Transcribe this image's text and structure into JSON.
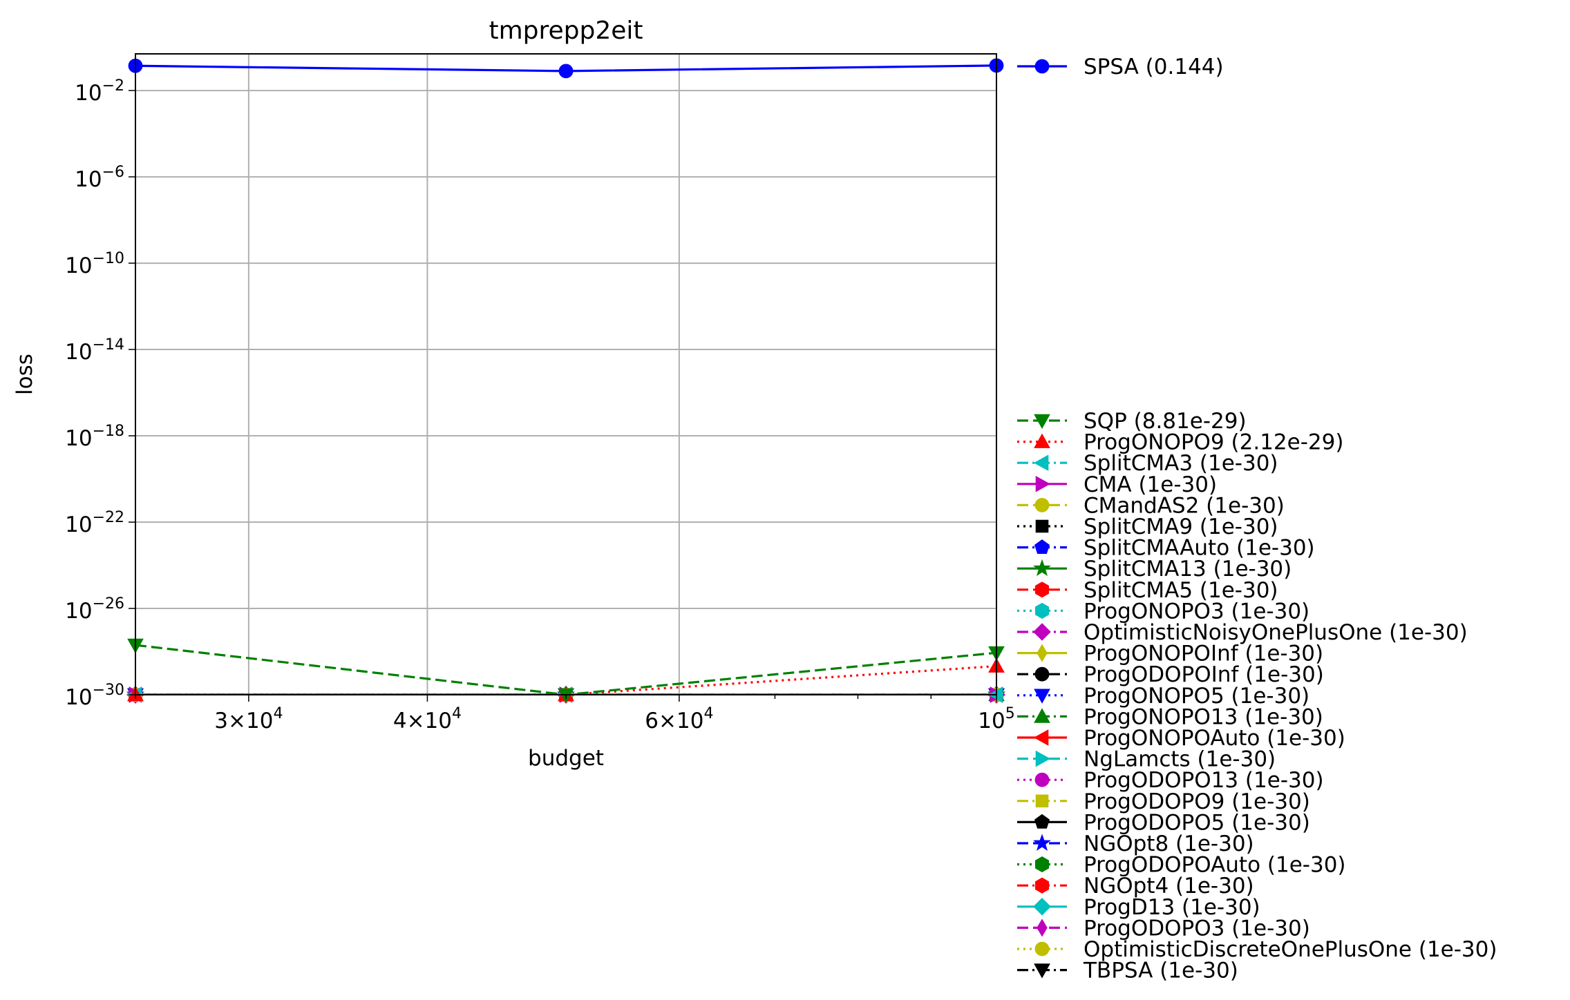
{
  "chart_data": {
    "type": "line",
    "title": "tmprepp2eit",
    "xlabel": "budget",
    "ylabel": "loss",
    "xscale": "log",
    "yscale": "log",
    "xlim": [
      25000,
      100000
    ],
    "ylim": [
      1e-30,
      0.5
    ],
    "grid": true,
    "legend_position": "right",
    "x_ticks": [
      {
        "value": 30000,
        "mant": "3",
        "exp": "4"
      },
      {
        "value": 40000,
        "mant": "4",
        "exp": "4"
      },
      {
        "value": 60000,
        "mant": "6",
        "exp": "4"
      },
      {
        "value": 100000,
        "mant": "",
        "exp": "5"
      }
    ],
    "y_ticks": [
      {
        "value": 0.01,
        "exp": "−2"
      },
      {
        "value": 1e-06,
        "exp": "−6"
      },
      {
        "value": 1e-10,
        "exp": "−10"
      },
      {
        "value": 1e-14,
        "exp": "−14"
      },
      {
        "value": 1e-18,
        "exp": "−18"
      },
      {
        "value": 1e-22,
        "exp": "−22"
      },
      {
        "value": 1e-26,
        "exp": "−26"
      },
      {
        "value": 1e-30,
        "exp": "−30"
      }
    ],
    "x": [
      25000,
      50000,
      100000
    ],
    "series": [
      {
        "name": "SPSA (0.144)",
        "values": [
          0.14,
          0.08,
          0.144
        ],
        "color": "#0000ff",
        "dash": "solid",
        "marker": "circle",
        "group": "top"
      },
      {
        "name": "SQP (8.81e-29)",
        "values": [
          2e-28,
          1e-30,
          8.81e-29
        ],
        "color": "#008000",
        "dash": "dashed",
        "marker": "triangle-down"
      },
      {
        "name": "ProgONOPO9 (2.12e-29)",
        "values": [
          1e-30,
          1e-30,
          2.12e-29
        ],
        "color": "#ff0000",
        "dash": "dotted",
        "marker": "triangle-up"
      },
      {
        "name": "SplitCMA3 (1e-30)",
        "values": [
          1e-30,
          1e-30,
          1e-30
        ],
        "color": "#00bfbf",
        "dash": "dashdot",
        "marker": "triangle-left"
      },
      {
        "name": "CMA (1e-30)",
        "values": [
          1e-30,
          1e-30,
          1e-30
        ],
        "color": "#bf00bf",
        "dash": "solid",
        "marker": "triangle-right"
      },
      {
        "name": "CMandAS2 (1e-30)",
        "values": [
          1e-30,
          1e-30,
          1e-30
        ],
        "color": "#bfbf00",
        "dash": "dashed",
        "marker": "circle"
      },
      {
        "name": "SplitCMA9 (1e-30)",
        "values": [
          1e-30,
          1e-30,
          1e-30
        ],
        "color": "#000000",
        "dash": "dotted",
        "marker": "square"
      },
      {
        "name": "SplitCMAAuto (1e-30)",
        "values": [
          1e-30,
          1e-30,
          1e-30
        ],
        "color": "#0000ff",
        "dash": "dashdot",
        "marker": "pentagon"
      },
      {
        "name": "SplitCMA13 (1e-30)",
        "values": [
          1e-30,
          1e-30,
          1e-30
        ],
        "color": "#008000",
        "dash": "solid",
        "marker": "star"
      },
      {
        "name": "SplitCMA5 (1e-30)",
        "values": [
          1e-30,
          1e-30,
          1e-30
        ],
        "color": "#ff0000",
        "dash": "dashed",
        "marker": "hexagon"
      },
      {
        "name": "ProgONOPO3 (1e-30)",
        "values": [
          1e-30,
          1e-30,
          1e-30
        ],
        "color": "#00bfbf",
        "dash": "dotted",
        "marker": "hexagon"
      },
      {
        "name": "OptimisticNoisyOnePlusOne (1e-30)",
        "values": [
          1e-30,
          1e-30,
          1e-30
        ],
        "color": "#bf00bf",
        "dash": "dashdot",
        "marker": "diamond"
      },
      {
        "name": "ProgONOPOInf (1e-30)",
        "values": [
          1e-30,
          1e-30,
          1e-30
        ],
        "color": "#bfbf00",
        "dash": "solid",
        "marker": "thin-diamond"
      },
      {
        "name": "ProgODOPOInf (1e-30)",
        "values": [
          1e-30,
          1e-30,
          1e-30
        ],
        "color": "#000000",
        "dash": "dashed",
        "marker": "circle"
      },
      {
        "name": "ProgONOPO5 (1e-30)",
        "values": [
          1e-30,
          1e-30,
          1e-30
        ],
        "color": "#0000ff",
        "dash": "dotted",
        "marker": "triangle-down"
      },
      {
        "name": "ProgONOPO13 (1e-30)",
        "values": [
          1e-30,
          1e-30,
          1e-30
        ],
        "color": "#008000",
        "dash": "dashdot",
        "marker": "triangle-up"
      },
      {
        "name": "ProgONOPOAuto (1e-30)",
        "values": [
          1e-30,
          1e-30,
          1e-30
        ],
        "color": "#ff0000",
        "dash": "solid",
        "marker": "triangle-left"
      },
      {
        "name": "NgLamcts (1e-30)",
        "values": [
          1e-30,
          1e-30,
          1e-30
        ],
        "color": "#00bfbf",
        "dash": "dashed",
        "marker": "triangle-right"
      },
      {
        "name": "ProgODOPO13 (1e-30)",
        "values": [
          1e-30,
          1e-30,
          1e-30
        ],
        "color": "#bf00bf",
        "dash": "dotted",
        "marker": "circle"
      },
      {
        "name": "ProgODOPO9 (1e-30)",
        "values": [
          1e-30,
          1e-30,
          1e-30
        ],
        "color": "#bfbf00",
        "dash": "dashdot",
        "marker": "square"
      },
      {
        "name": "ProgODOPO5 (1e-30)",
        "values": [
          1e-30,
          1e-30,
          1e-30
        ],
        "color": "#000000",
        "dash": "solid",
        "marker": "pentagon"
      },
      {
        "name": "NGOpt8 (1e-30)",
        "values": [
          1e-30,
          1e-30,
          1e-30
        ],
        "color": "#0000ff",
        "dash": "dashed",
        "marker": "star"
      },
      {
        "name": "ProgODOPOAuto (1e-30)",
        "values": [
          1e-30,
          1e-30,
          1e-30
        ],
        "color": "#008000",
        "dash": "dotted",
        "marker": "hexagon"
      },
      {
        "name": "NGOpt4 (1e-30)",
        "values": [
          1e-30,
          1e-30,
          1e-30
        ],
        "color": "#ff0000",
        "dash": "dashdot",
        "marker": "hexagon"
      },
      {
        "name": "ProgD13 (1e-30)",
        "values": [
          1e-30,
          1e-30,
          1e-30
        ],
        "color": "#00bfbf",
        "dash": "solid",
        "marker": "diamond"
      },
      {
        "name": "ProgODOPO3 (1e-30)",
        "values": [
          1e-30,
          1e-30,
          1e-30
        ],
        "color": "#bf00bf",
        "dash": "dashed",
        "marker": "thin-diamond"
      },
      {
        "name": "OptimisticDiscreteOnePlusOne (1e-30)",
        "values": [
          1e-30,
          1e-30,
          1e-30
        ],
        "color": "#bfbf00",
        "dash": "dotted",
        "marker": "circle"
      },
      {
        "name": "TBPSA (1e-30)",
        "values": [
          1e-30,
          1e-30,
          1e-30
        ],
        "color": "#000000",
        "dash": "dashdot",
        "marker": "triangle-down"
      }
    ]
  }
}
